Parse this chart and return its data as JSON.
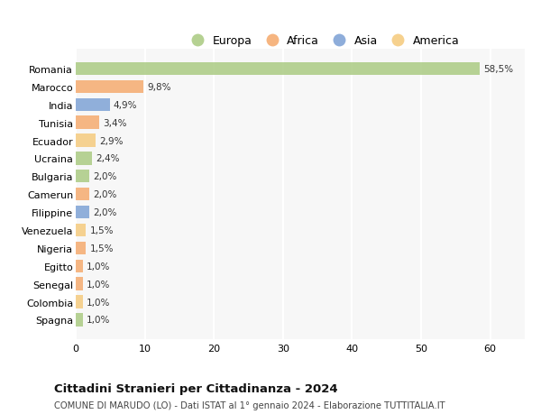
{
  "categories": [
    "Spagna",
    "Colombia",
    "Senegal",
    "Egitto",
    "Nigeria",
    "Venezuela",
    "Filippine",
    "Camerun",
    "Bulgaria",
    "Ucraina",
    "Ecuador",
    "Tunisia",
    "India",
    "Marocco",
    "Romania"
  ],
  "values": [
    1.0,
    1.0,
    1.0,
    1.0,
    1.5,
    1.5,
    2.0,
    2.0,
    2.0,
    2.4,
    2.9,
    3.4,
    4.9,
    9.8,
    58.5
  ],
  "labels": [
    "1,0%",
    "1,0%",
    "1,0%",
    "1,0%",
    "1,5%",
    "1,5%",
    "2,0%",
    "2,0%",
    "2,0%",
    "2,4%",
    "2,9%",
    "3,4%",
    "4,9%",
    "9,8%",
    "58,5%"
  ],
  "colors": [
    "#a8c97f",
    "#f5c97a",
    "#f5a86a",
    "#f5a86a",
    "#f5a86a",
    "#f5c97a",
    "#7a9fd4",
    "#f5a86a",
    "#a8c97f",
    "#a8c97f",
    "#f5c97a",
    "#f5a86a",
    "#7a9fd4",
    "#f5a86a",
    "#a8c97f"
  ],
  "legend_labels": [
    "Europa",
    "Africa",
    "Asia",
    "America"
  ],
  "legend_colors": [
    "#a8c97f",
    "#f5a86a",
    "#7a9fd4",
    "#f5c97a"
  ],
  "xlim": [
    0,
    65
  ],
  "xticks": [
    0,
    10,
    20,
    30,
    40,
    50,
    60
  ],
  "title": "Cittadini Stranieri per Cittadinanza - 2024",
  "subtitle": "COMUNE DI MARUDO (LO) - Dati ISTAT al 1° gennaio 2024 - Elaborazione TUTTITALIA.IT",
  "background_color": "#ffffff",
  "plot_bg_color": "#f7f7f7",
  "grid_color": "#ffffff"
}
